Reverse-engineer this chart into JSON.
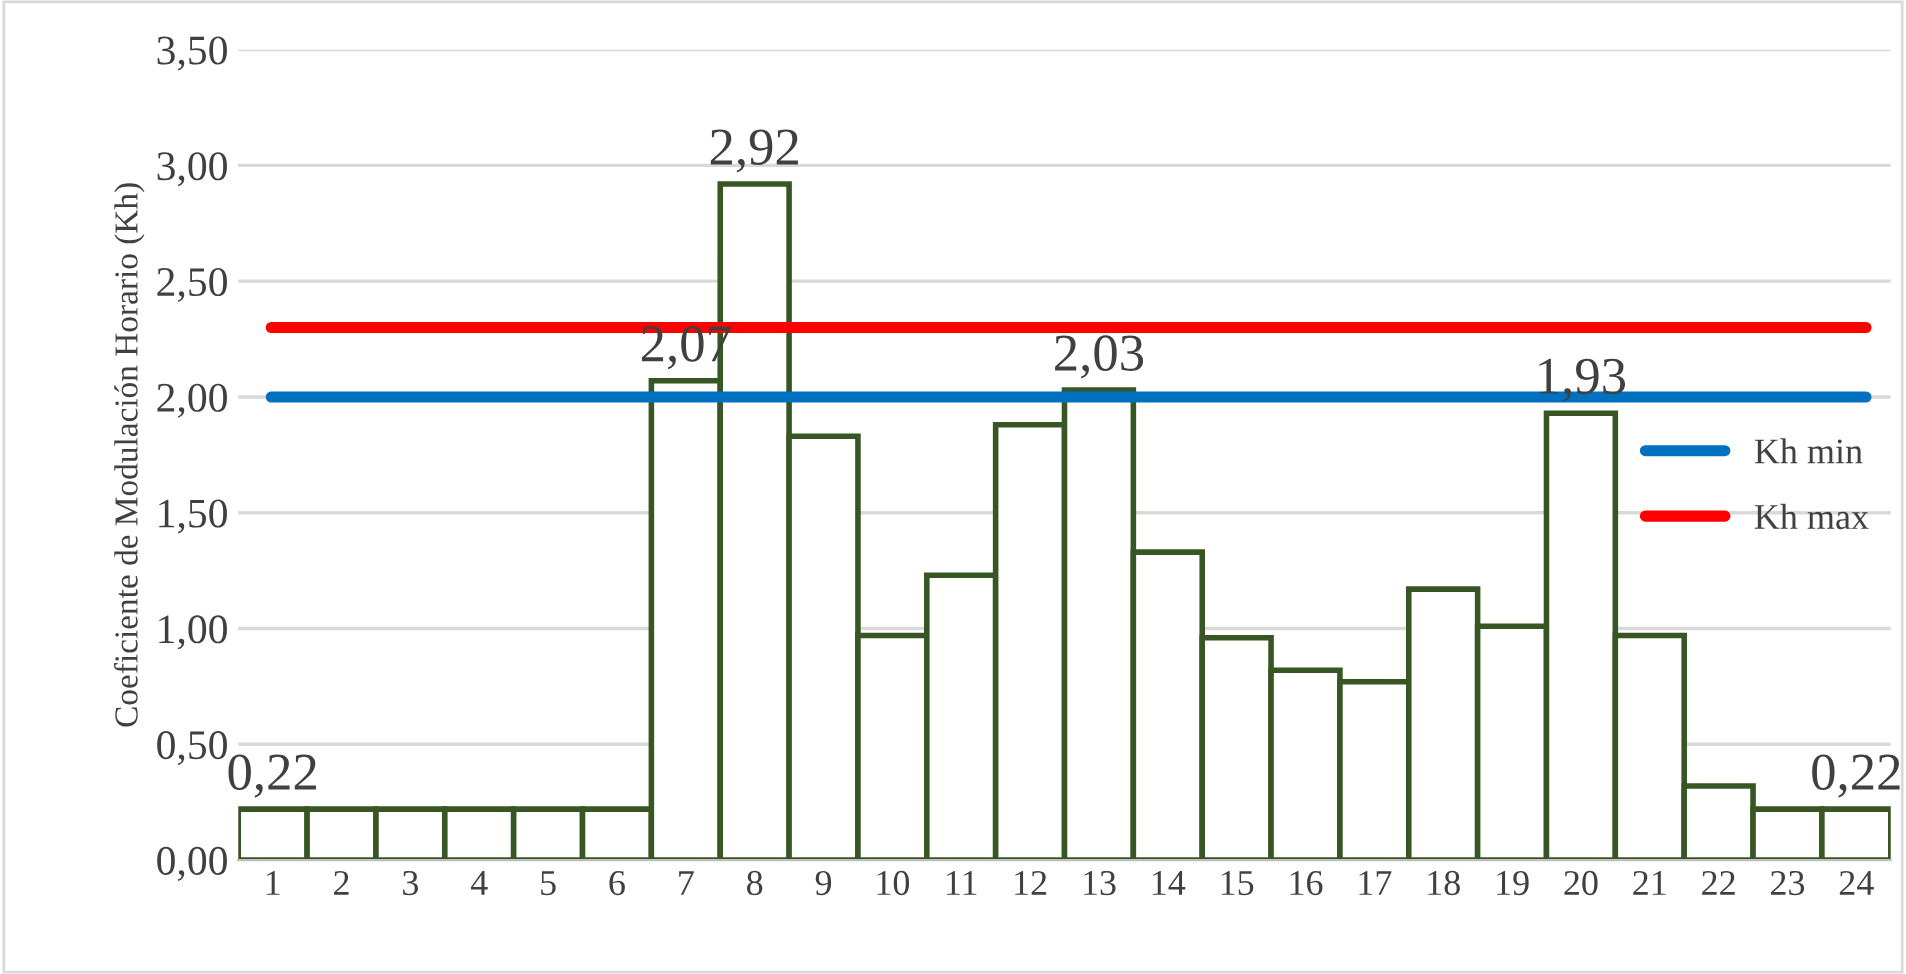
{
  "chart_data": {
    "type": "bar",
    "ylabel": "Coeficiente de Modulación Horario (Kh)",
    "categories": [
      "1",
      "2",
      "3",
      "4",
      "5",
      "6",
      "7",
      "8",
      "9",
      "10",
      "11",
      "12",
      "13",
      "14",
      "15",
      "16",
      "17",
      "18",
      "19",
      "20",
      "21",
      "22",
      "23",
      "24"
    ],
    "values": [
      0.22,
      0.22,
      0.22,
      0.22,
      0.22,
      0.22,
      2.07,
      2.92,
      1.83,
      0.97,
      1.23,
      1.88,
      2.03,
      1.33,
      0.96,
      0.82,
      0.77,
      1.17,
      1.01,
      1.93,
      0.97,
      0.32,
      0.22,
      0.22
    ],
    "value_labels": [
      "0,22",
      null,
      null,
      null,
      null,
      null,
      "2,07",
      "2,92",
      null,
      null,
      null,
      null,
      "2,03",
      null,
      null,
      null,
      null,
      null,
      null,
      "1,93",
      null,
      null,
      null,
      "0,22"
    ],
    "color": "#ffffff",
    "ylim": [
      0,
      3.5
    ],
    "yticks": [
      {
        "value": 0,
        "label": "0,00"
      },
      {
        "value": 0.5,
        "label": "0,50"
      },
      {
        "value": 1,
        "label": "1,00"
      },
      {
        "value": 1.5,
        "label": "1,50"
      },
      {
        "value": 2,
        "label": "2,00"
      },
      {
        "value": 2.5,
        "label": "2,50"
      },
      {
        "value": 3,
        "label": "3,00"
      },
      {
        "value": 3.5,
        "label": "3,50"
      }
    ],
    "ref_lines": [
      {
        "axis": "y",
        "value": 2.0,
        "label": "Kh min",
        "color": "#0070c0"
      },
      {
        "axis": "y",
        "value": 2.3,
        "label": "Kh max",
        "color": "#ff0000"
      }
    ],
    "grid": "y",
    "legend": "right"
  }
}
